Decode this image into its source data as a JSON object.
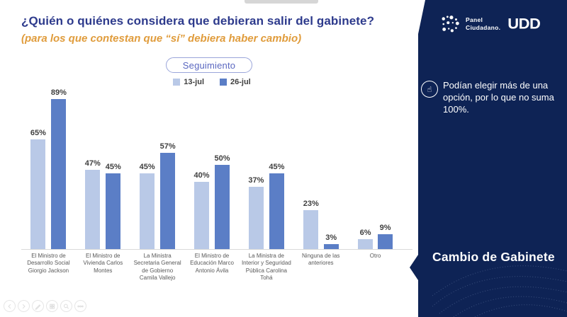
{
  "slide": {
    "title": "¿Quién o quiénes considera que debieran salir del gabinete?",
    "subtitle": "(para los que contestan que “sí” debiera haber cambio)",
    "tracking_pill": "Seguimiento"
  },
  "chart_data": {
    "type": "bar",
    "categories": [
      "El Ministro de Desarrollo Social Giorgio Jackson",
      "El Ministro de Vivienda Carlos Montes",
      "La Ministra Secretaria General de Gobierno Camila Vallejo",
      "El Ministro de Educación Marco Antonio Ávila",
      "La Ministra de Interior y Seguridad Pública Carolina Tohá",
      "Ninguna de las anteriores",
      "Otro"
    ],
    "series": [
      {
        "name": "13-jul",
        "color": "#b9c9e7",
        "values": [
          65,
          47,
          45,
          40,
          37,
          23,
          6
        ]
      },
      {
        "name": "26-jul",
        "color": "#5b7ec6",
        "values": [
          89,
          45,
          57,
          50,
          45,
          3,
          9
        ]
      }
    ],
    "value_suffix": "%",
    "ylim": [
      0,
      100
    ],
    "grid": false,
    "legend_position": "top",
    "data_labels": true
  },
  "sidebar": {
    "bg_color": "#0e2355",
    "brand": {
      "line1": "Panel",
      "line2": "Ciudadano.",
      "udd": "UDD"
    },
    "note": "Podían elegir más de una opción, por lo que no suma 100%.",
    "section_label": "Cambio de Gabinete"
  },
  "footer_controls": [
    "prev",
    "next",
    "draw",
    "grid",
    "zoom",
    "more"
  ]
}
